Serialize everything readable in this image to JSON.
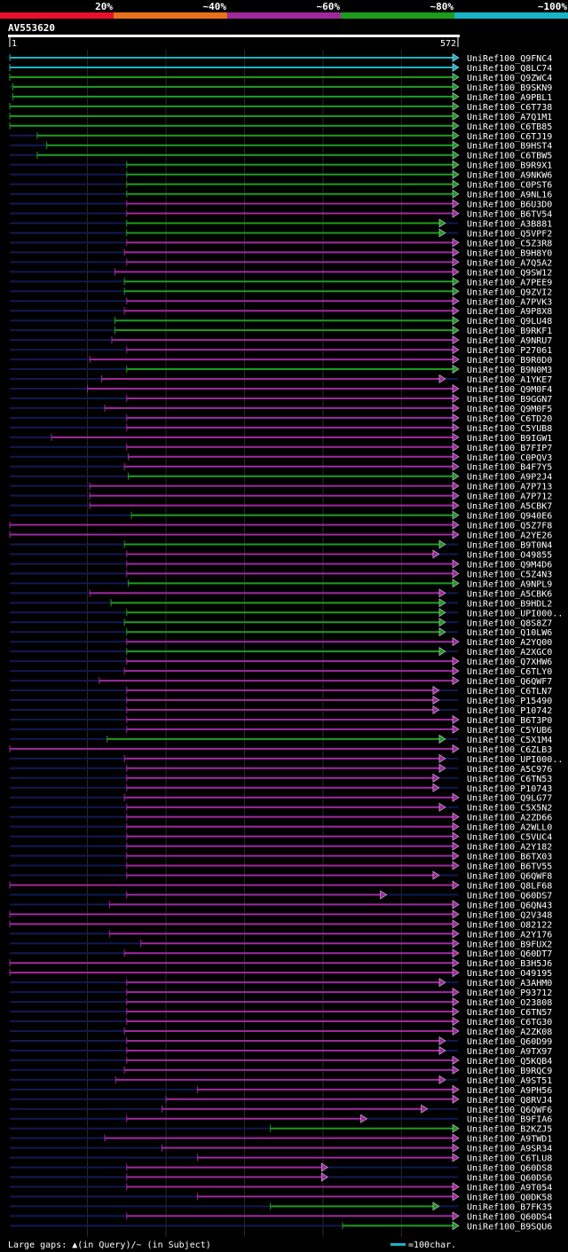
{
  "header": {
    "scale_labels": [
      "20%",
      "~40%",
      "~60%",
      "~80%",
      "~100%"
    ],
    "scale_colors": [
      "#e8102c",
      "#e8701c",
      "#a0289c",
      "#1c9c1c",
      "#18b4c4"
    ],
    "query_id": "AV553620",
    "query_start": "1",
    "query_end": "572"
  },
  "footer": {
    "legend_text": "Large gaps: ▲(in Query)/~ (in Subject)",
    "scale_text": "=100char.",
    "scale_color": "#18b4c4"
  },
  "chart_data": {
    "type": "alignment-overview",
    "query_length": 572,
    "colors": {
      "green": "#1c9c1c",
      "purple": "#a0289c",
      "cyan": "#18b4c4",
      "dark": "#101a52"
    },
    "hits": [
      {
        "label": "UniRef100_Q9FNC4",
        "start": 1,
        "end": 572,
        "color": "cyan"
      },
      {
        "label": "UniRef100_Q8LC74",
        "start": 1,
        "end": 572,
        "color": "cyan"
      },
      {
        "label": "UniRef100_Q9ZWC4",
        "start": 1,
        "end": 572,
        "color": "green"
      },
      {
        "label": "UniRef100_B9SKN9",
        "start": 5,
        "end": 572,
        "color": "green"
      },
      {
        "label": "UniRef100_A9PBL1",
        "start": 5,
        "end": 572,
        "color": "green"
      },
      {
        "label": "UniRef100_C6T738",
        "start": 1,
        "end": 572,
        "color": "green"
      },
      {
        "label": "UniRef100_A7Q1M1",
        "start": 1,
        "end": 572,
        "color": "green"
      },
      {
        "label": "UniRef100_C6TB85",
        "start": 1,
        "end": 572,
        "color": "green"
      },
      {
        "label": "UniRef100_C6TJ19",
        "start": 36,
        "end": 572,
        "color": "green"
      },
      {
        "label": "UniRef100_B9HST4",
        "start": 48,
        "end": 572,
        "color": "green"
      },
      {
        "label": "UniRef100_C6TBW5",
        "start": 36,
        "end": 572,
        "color": "green"
      },
      {
        "label": "UniRef100_B9R9X1",
        "start": 150,
        "end": 572,
        "color": "green"
      },
      {
        "label": "UniRef100_A9NKW6",
        "start": 150,
        "end": 572,
        "color": "green"
      },
      {
        "label": "UniRef100_C0PST6",
        "start": 150,
        "end": 572,
        "color": "green"
      },
      {
        "label": "UniRef100_A9NL16",
        "start": 150,
        "end": 572,
        "color": "green"
      },
      {
        "label": "UniRef100_B6U3D0",
        "start": 150,
        "end": 572,
        "color": "purple"
      },
      {
        "label": "UniRef100_B6TV54",
        "start": 150,
        "end": 572,
        "color": "purple"
      },
      {
        "label": "UniRef100_A3B881",
        "start": 150,
        "end": 555,
        "color": "green"
      },
      {
        "label": "UniRef100_Q5VPF2",
        "start": 150,
        "end": 555,
        "color": "green"
      },
      {
        "label": "UniRef100_C5Z3R8",
        "start": 150,
        "end": 572,
        "color": "purple"
      },
      {
        "label": "UniRef100_B9H8Y0",
        "start": 147,
        "end": 572,
        "color": "purple"
      },
      {
        "label": "UniRef100_A7Q5A2",
        "start": 150,
        "end": 572,
        "color": "purple"
      },
      {
        "label": "UniRef100_Q9SW12",
        "start": 135,
        "end": 572,
        "color": "purple"
      },
      {
        "label": "UniRef100_A7PEE9",
        "start": 147,
        "end": 572,
        "color": "green"
      },
      {
        "label": "UniRef100_Q9ZVI2",
        "start": 147,
        "end": 572,
        "color": "green"
      },
      {
        "label": "UniRef100_A7PVK3",
        "start": 150,
        "end": 572,
        "color": "purple"
      },
      {
        "label": "UniRef100_A9P8X8",
        "start": 147,
        "end": 572,
        "color": "purple"
      },
      {
        "label": "UniRef100_Q9LU48",
        "start": 135,
        "end": 572,
        "color": "green"
      },
      {
        "label": "UniRef100_B9RKF1",
        "start": 135,
        "end": 572,
        "color": "green"
      },
      {
        "label": "UniRef100_A9NRU7",
        "start": 131,
        "end": 572,
        "color": "purple"
      },
      {
        "label": "UniRef100_P27061",
        "start": 150,
        "end": 572,
        "color": "purple"
      },
      {
        "label": "UniRef100_B9R0D0",
        "start": 103,
        "end": 572,
        "color": "purple"
      },
      {
        "label": "UniRef100_B9N0M3",
        "start": 150,
        "end": 572,
        "color": "green"
      },
      {
        "label": "UniRef100_A1YKE7",
        "start": 118,
        "end": 555,
        "color": "purple"
      },
      {
        "label": "UniRef100_Q9M0F4",
        "start": 100,
        "end": 572,
        "color": "purple"
      },
      {
        "label": "UniRef100_B9GGN7",
        "start": 150,
        "end": 572,
        "color": "purple"
      },
      {
        "label": "UniRef100_Q9M0F5",
        "start": 122,
        "end": 572,
        "color": "purple"
      },
      {
        "label": "UniRef100_C6TD20",
        "start": 150,
        "end": 572,
        "color": "purple"
      },
      {
        "label": "UniRef100_C5YUB8",
        "start": 150,
        "end": 572,
        "color": "purple"
      },
      {
        "label": "UniRef100_B9IGW1",
        "start": 54,
        "end": 572,
        "color": "purple"
      },
      {
        "label": "UniRef100_B7FIP7",
        "start": 150,
        "end": 572,
        "color": "purple"
      },
      {
        "label": "UniRef100_C0PQV3",
        "start": 152,
        "end": 572,
        "color": "purple"
      },
      {
        "label": "UniRef100_B4F7Y5",
        "start": 147,
        "end": 572,
        "color": "purple"
      },
      {
        "label": "UniRef100_A9P2J4",
        "start": 152,
        "end": 572,
        "color": "green"
      },
      {
        "label": "UniRef100_A7P713",
        "start": 103,
        "end": 572,
        "color": "purple"
      },
      {
        "label": "UniRef100_A7P712",
        "start": 103,
        "end": 572,
        "color": "purple"
      },
      {
        "label": "UniRef100_A5CBK7",
        "start": 103,
        "end": 572,
        "color": "purple"
      },
      {
        "label": "UniRef100_Q940E6",
        "start": 156,
        "end": 572,
        "color": "green"
      },
      {
        "label": "UniRef100_Q5Z7F8",
        "start": 1,
        "end": 572,
        "color": "purple"
      },
      {
        "label": "UniRef100_A2YE26",
        "start": 1,
        "end": 572,
        "color": "purple"
      },
      {
        "label": "UniRef100_B9T0N4",
        "start": 147,
        "end": 555,
        "color": "green"
      },
      {
        "label": "UniRef100_O49855",
        "start": 150,
        "end": 547,
        "color": "purple"
      },
      {
        "label": "UniRef100_Q9M4D6",
        "start": 150,
        "end": 572,
        "color": "purple"
      },
      {
        "label": "UniRef100_C5Z4N3",
        "start": 150,
        "end": 572,
        "color": "purple"
      },
      {
        "label": "UniRef100_A9NPL9",
        "start": 152,
        "end": 572,
        "color": "green"
      },
      {
        "label": "UniRef100_A5CBK6",
        "start": 103,
        "end": 555,
        "color": "purple"
      },
      {
        "label": "UniRef100_B9HDL2",
        "start": 130,
        "end": 555,
        "color": "green"
      },
      {
        "label": "UniRef100_UPI000..",
        "start": 150,
        "end": 555,
        "color": "green"
      },
      {
        "label": "UniRef100_Q8S8Z7",
        "start": 147,
        "end": 555,
        "color": "green"
      },
      {
        "label": "UniRef100_Q10LW6",
        "start": 150,
        "end": 555,
        "color": "green"
      },
      {
        "label": "UniRef100_A2YQ00",
        "start": 150,
        "end": 572,
        "color": "purple"
      },
      {
        "label": "UniRef100_A2XGC0",
        "start": 150,
        "end": 555,
        "color": "green"
      },
      {
        "label": "UniRef100_Q7XHW6",
        "start": 150,
        "end": 572,
        "color": "purple"
      },
      {
        "label": "UniRef100_C6TLY0",
        "start": 147,
        "end": 572,
        "color": "purple"
      },
      {
        "label": "UniRef100_Q6QWF7",
        "start": 115,
        "end": 572,
        "color": "purple"
      },
      {
        "label": "UniRef100_C6TLN7",
        "start": 150,
        "end": 547,
        "color": "purple"
      },
      {
        "label": "UniRef100_P15490",
        "start": 150,
        "end": 547,
        "color": "purple"
      },
      {
        "label": "UniRef100_P10742",
        "start": 150,
        "end": 547,
        "color": "purple"
      },
      {
        "label": "UniRef100_B6T3P0",
        "start": 150,
        "end": 572,
        "color": "purple"
      },
      {
        "label": "UniRef100_C5YUB6",
        "start": 150,
        "end": 572,
        "color": "purple"
      },
      {
        "label": "UniRef100_C5X1M4",
        "start": 125,
        "end": 555,
        "color": "green"
      },
      {
        "label": "UniRef100_C6ZLB3",
        "start": 1,
        "end": 572,
        "color": "purple"
      },
      {
        "label": "UniRef100_UPI000..",
        "start": 147,
        "end": 555,
        "color": "purple"
      },
      {
        "label": "UniRef100_A5C976",
        "start": 150,
        "end": 555,
        "color": "purple"
      },
      {
        "label": "UniRef100_C6TN53",
        "start": 150,
        "end": 547,
        "color": "purple"
      },
      {
        "label": "UniRef100_P10743",
        "start": 150,
        "end": 547,
        "color": "purple"
      },
      {
        "label": "UniRef100_Q9LG77",
        "start": 147,
        "end": 572,
        "color": "purple"
      },
      {
        "label": "UniRef100_C5X5N2",
        "start": 150,
        "end": 555,
        "color": "purple"
      },
      {
        "label": "UniRef100_A2ZD66",
        "start": 150,
        "end": 572,
        "color": "purple"
      },
      {
        "label": "UniRef100_A2WLL0",
        "start": 150,
        "end": 572,
        "color": "purple"
      },
      {
        "label": "UniRef100_C5VUC4",
        "start": 150,
        "end": 572,
        "color": "purple"
      },
      {
        "label": "UniRef100_A2Y182",
        "start": 150,
        "end": 572,
        "color": "purple"
      },
      {
        "label": "UniRef100_B6TX03",
        "start": 150,
        "end": 572,
        "color": "purple"
      },
      {
        "label": "UniRef100_B6TV55",
        "start": 150,
        "end": 572,
        "color": "purple"
      },
      {
        "label": "UniRef100_Q6QWF8",
        "start": 150,
        "end": 547,
        "color": "purple"
      },
      {
        "label": "UniRef100_Q8LF68",
        "start": 1,
        "end": 572,
        "color": "purple"
      },
      {
        "label": "UniRef100_Q60DS7",
        "start": 150,
        "end": 480,
        "color": "purple"
      },
      {
        "label": "UniRef100_Q6QN43",
        "start": 128,
        "end": 572,
        "color": "purple"
      },
      {
        "label": "UniRef100_Q2V348",
        "start": 1,
        "end": 572,
        "color": "purple"
      },
      {
        "label": "UniRef100_O82122",
        "start": 1,
        "end": 572,
        "color": "purple"
      },
      {
        "label": "UniRef100_A2Y176",
        "start": 128,
        "end": 572,
        "color": "purple"
      },
      {
        "label": "UniRef100_B9FUX2",
        "start": 168,
        "end": 572,
        "color": "purple"
      },
      {
        "label": "UniRef100_Q60DT7",
        "start": 147,
        "end": 572,
        "color": "purple"
      },
      {
        "label": "UniRef100_B3H5J6",
        "start": 1,
        "end": 572,
        "color": "purple"
      },
      {
        "label": "UniRef100_O49195",
        "start": 1,
        "end": 572,
        "color": "purple"
      },
      {
        "label": "UniRef100_A3AHM0",
        "start": 150,
        "end": 555,
        "color": "purple"
      },
      {
        "label": "UniRef100_P93712",
        "start": 150,
        "end": 572,
        "color": "purple"
      },
      {
        "label": "UniRef100_O23808",
        "start": 150,
        "end": 572,
        "color": "purple"
      },
      {
        "label": "UniRef100_C6TN57",
        "start": 150,
        "end": 572,
        "color": "purple"
      },
      {
        "label": "UniRef100_C6TG30",
        "start": 150,
        "end": 572,
        "color": "purple"
      },
      {
        "label": "UniRef100_A2ZK08",
        "start": 147,
        "end": 572,
        "color": "purple"
      },
      {
        "label": "UniRef100_Q60D99",
        "start": 150,
        "end": 555,
        "color": "purple"
      },
      {
        "label": "UniRef100_A9TX97",
        "start": 150,
        "end": 555,
        "color": "purple"
      },
      {
        "label": "UniRef100_Q5KQB4",
        "start": 150,
        "end": 572,
        "color": "purple"
      },
      {
        "label": "UniRef100_B9RQC9",
        "start": 147,
        "end": 572,
        "color": "purple"
      },
      {
        "label": "UniRef100_A9ST51",
        "start": 136,
        "end": 555,
        "color": "purple"
      },
      {
        "label": "UniRef100_A9PH56",
        "start": 240,
        "end": 572,
        "color": "purple"
      },
      {
        "label": "UniRef100_Q8RVJ4",
        "start": 200,
        "end": 572,
        "color": "purple"
      },
      {
        "label": "UniRef100_Q6QWF6",
        "start": 195,
        "end": 532,
        "color": "purple"
      },
      {
        "label": "UniRef100_B9FIA6",
        "start": 150,
        "end": 455,
        "color": "purple"
      },
      {
        "label": "UniRef100_B2KZJ5",
        "start": 333,
        "end": 572,
        "color": "green"
      },
      {
        "label": "UniRef100_A9TWD1",
        "start": 122,
        "end": 572,
        "color": "purple"
      },
      {
        "label": "UniRef100_A9SR34",
        "start": 195,
        "end": 572,
        "color": "purple"
      },
      {
        "label": "UniRef100_C6TLU8",
        "start": 240,
        "end": 572,
        "color": "purple"
      },
      {
        "label": "UniRef100_Q60DS8",
        "start": 150,
        "end": 405,
        "color": "purple"
      },
      {
        "label": "UniRef100_Q60DS6",
        "start": 150,
        "end": 405,
        "color": "purple"
      },
      {
        "label": "UniRef100_A9T054",
        "start": 150,
        "end": 572,
        "color": "purple"
      },
      {
        "label": "UniRef100_Q0DK58",
        "start": 240,
        "end": 572,
        "color": "purple"
      },
      {
        "label": "UniRef100_B7FK35",
        "start": 333,
        "end": 547,
        "color": "green"
      },
      {
        "label": "UniRef100_Q60DS4",
        "start": 150,
        "end": 572,
        "color": "purple"
      },
      {
        "label": "UniRef100_B9SQU6",
        "start": 425,
        "end": 572,
        "color": "green"
      }
    ]
  }
}
